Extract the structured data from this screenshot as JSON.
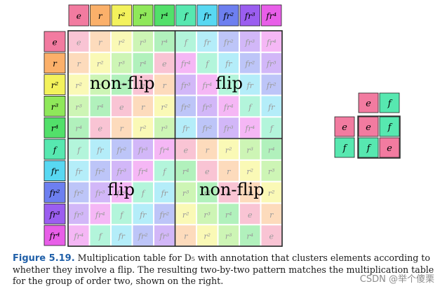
{
  "elements": [
    "e",
    "r",
    "r2",
    "r3",
    "r4",
    "f",
    "fr",
    "fr2",
    "fr3",
    "fr4"
  ],
  "element_labels": {
    "e": "e",
    "r": "r",
    "r2": "r²",
    "r3": "r³",
    "r4": "r⁴",
    "f": "f",
    "fr": "fr",
    "fr2": "fr²",
    "fr3": "fr³",
    "fr4": "fr⁴"
  },
  "colors": {
    "e": "#f27ba0",
    "r": "#fbb06a",
    "r2": "#f3f25c",
    "r3": "#8fe85a",
    "r4": "#52e06a",
    "f": "#57e8b0",
    "fr": "#58d8f2",
    "fr2": "#6d7ff0",
    "fr3": "#9b5ef0",
    "fr4": "#e85ee8"
  },
  "table": [
    [
      "e",
      "r",
      "r2",
      "r3",
      "r4",
      "f",
      "fr",
      "fr2",
      "fr3",
      "fr4"
    ],
    [
      "r",
      "r2",
      "r3",
      "r4",
      "e",
      "fr4",
      "f",
      "fr",
      "fr2",
      "fr3"
    ],
    [
      "r2",
      "r3",
      "r4",
      "e",
      "r",
      "fr3",
      "fr4",
      "f",
      "fr",
      "fr2"
    ],
    [
      "r3",
      "r4",
      "e",
      "r",
      "r2",
      "fr2",
      "fr3",
      "fr4",
      "f",
      "fr"
    ],
    [
      "r4",
      "e",
      "r",
      "r2",
      "r3",
      "fr",
      "fr2",
      "fr3",
      "fr4",
      "f"
    ],
    [
      "f",
      "fr",
      "fr2",
      "fr3",
      "fr4",
      "e",
      "r",
      "r2",
      "r3",
      "r4"
    ],
    [
      "fr",
      "fr2",
      "fr3",
      "fr4",
      "f",
      "r4",
      "e",
      "r",
      "r2",
      "r3"
    ],
    [
      "fr2",
      "fr3",
      "fr4",
      "f",
      "fr",
      "r3",
      "r4",
      "e",
      "r",
      "r2"
    ],
    [
      "fr3",
      "fr4",
      "f",
      "fr",
      "fr2",
      "r2",
      "r3",
      "r4",
      "e",
      "r"
    ],
    [
      "fr4",
      "f",
      "fr",
      "fr2",
      "fr3",
      "r",
      "r2",
      "r3",
      "r4",
      "e"
    ]
  ],
  "region_labels": {
    "top_left": "non-flip",
    "top_right": "flip",
    "bottom_left": "flip",
    "bottom_right": "non-flip"
  },
  "order_two_table": {
    "header": [
      "e",
      "f"
    ],
    "rows": [
      {
        "label": "e",
        "cells": [
          "e",
          "f"
        ]
      },
      {
        "label": "f",
        "cells": [
          "f",
          "e"
        ]
      }
    ]
  },
  "caption": {
    "figure": "Figure 5.19.",
    "text": " Multiplication table for D₅ with annotation that clusters elements according to whether they involve a flip. The resulting two-by-two pattern matches the multiplication table for the group of order two, shown on the right."
  },
  "watermark": "CSDN @举个傻栗"
}
